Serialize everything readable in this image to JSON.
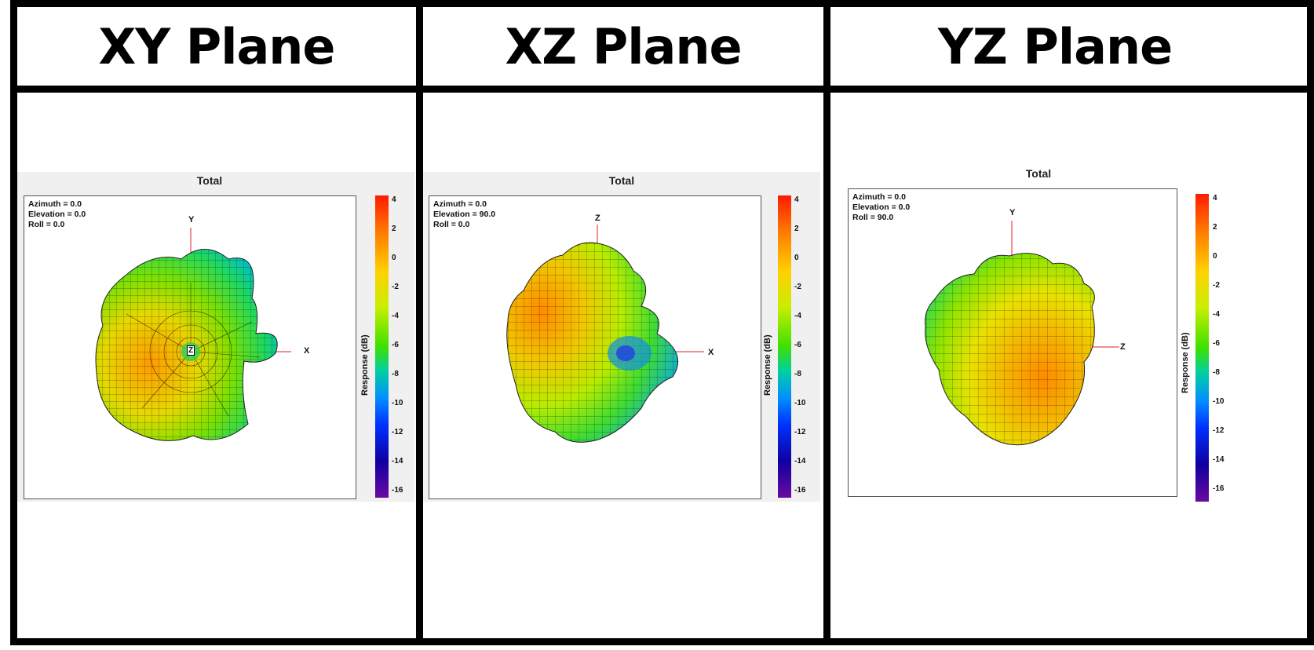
{
  "columns": [
    {
      "header": "XY Plane",
      "plot_title": "Total",
      "info": [
        "Azimuth = 0.0",
        "Elevation = 0.0",
        "Roll = 0.0"
      ],
      "axes": {
        "vertical": "Y",
        "horizontal": "X",
        "center": "Z"
      }
    },
    {
      "header": "XZ Plane",
      "plot_title": "Total",
      "info": [
        "Azimuth = 0.0",
        "Elevation = 90.0",
        "Roll = 0.0"
      ],
      "axes": {
        "vertical": "Z",
        "horizontal": "X"
      }
    },
    {
      "header": "YZ Plane",
      "plot_title": "Total",
      "info": [
        "Azimuth = 0.0",
        "Elevation = 0.0",
        "Roll = 90.0"
      ],
      "axes": {
        "vertical": "Y",
        "horizontal": "Z"
      }
    }
  ],
  "colorbar": {
    "label": "Response  (dB)",
    "ticks": [
      "4",
      "2",
      "0",
      "-2",
      "-4",
      "-6",
      "-8",
      "-10",
      "-12",
      "-14",
      "-16"
    ],
    "range_db": [
      -16,
      4
    ],
    "colors": [
      "#ff1a00",
      "#ff7a00",
      "#ffd000",
      "#c8ee00",
      "#3ee000",
      "#00d0a0",
      "#0090ff",
      "#0030ff",
      "#1000a0",
      "#6a0aa0"
    ]
  }
}
